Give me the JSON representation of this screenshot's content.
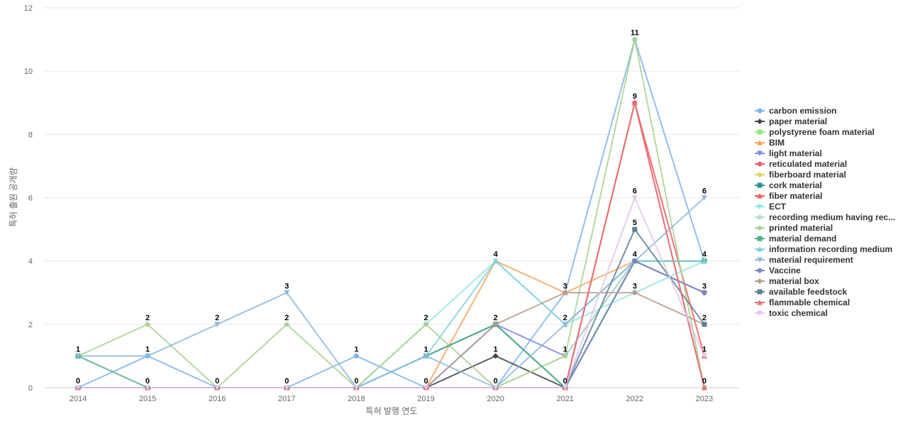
{
  "chart_data": {
    "type": "line",
    "xlabel": "특허 발행 연도",
    "ylabel": "특허 출원 공개량",
    "ylim": [
      0,
      12
    ],
    "yticks": [
      0,
      2,
      4,
      6,
      8,
      10,
      12
    ],
    "grid": true,
    "legend_position": "right",
    "categories": [
      "2014",
      "2015",
      "2016",
      "2017",
      "2018",
      "2019",
      "2020",
      "2021",
      "2022",
      "2023"
    ],
    "series": [
      {
        "name": "carbon emission",
        "color": "#7cb5ec",
        "marker": "circle",
        "values": [
          0,
          1,
          0,
          0,
          1,
          0,
          0,
          3,
          11,
          4
        ]
      },
      {
        "name": "paper material",
        "color": "#434348",
        "marker": "diamond",
        "values": [
          0,
          0,
          0,
          0,
          0,
          0,
          1,
          0,
          4,
          3
        ]
      },
      {
        "name": "polystyrene foam material",
        "color": "#90ed7d",
        "marker": "square",
        "values": [
          0,
          0,
          0,
          0,
          0,
          0,
          0,
          0,
          4,
          4
        ]
      },
      {
        "name": "BIM",
        "color": "#f7a35c",
        "marker": "triangle",
        "values": [
          0,
          0,
          0,
          0,
          0,
          0,
          4,
          3,
          4,
          4
        ]
      },
      {
        "name": "light material",
        "color": "#8085e9",
        "marker": "triangle-down",
        "values": [
          0,
          0,
          0,
          0,
          0,
          0,
          2,
          1,
          4,
          3
        ]
      },
      {
        "name": "reticulated material",
        "color": "#f15c80",
        "marker": "circle",
        "values": [
          0,
          0,
          0,
          0,
          0,
          0,
          0,
          0,
          9,
          0
        ]
      },
      {
        "name": "fiberboard material",
        "color": "#e4d354",
        "marker": "diamond",
        "values": [
          0,
          0,
          0,
          0,
          0,
          0,
          0,
          0,
          4,
          4
        ]
      },
      {
        "name": "cork material",
        "color": "#2b908f",
        "marker": "square",
        "values": [
          0,
          0,
          0,
          0,
          0,
          1,
          2,
          0,
          4,
          4
        ]
      },
      {
        "name": "fiber material",
        "color": "#f45b5b",
        "marker": "triangle",
        "values": [
          0,
          0,
          0,
          0,
          0,
          0,
          0,
          0,
          9,
          1
        ]
      },
      {
        "name": "ECT",
        "color": "#91e8e1",
        "marker": "triangle-down",
        "values": [
          0,
          0,
          0,
          0,
          0,
          2,
          4,
          2,
          3,
          4
        ]
      },
      {
        "name": "recording medium having rec...",
        "color": "#b5dfc4",
        "marker": "circle",
        "values": [
          0,
          0,
          0,
          0,
          0,
          0,
          0,
          1,
          4,
          4
        ]
      },
      {
        "name": "printed material",
        "color": "#a9d18e",
        "marker": "diamond",
        "values": [
          1,
          2,
          0,
          2,
          0,
          2,
          0,
          1,
          11,
          0
        ]
      },
      {
        "name": "material demand",
        "color": "#4cae8f",
        "marker": "square",
        "values": [
          1,
          0,
          0,
          0,
          0,
          1,
          2,
          0,
          4,
          4
        ]
      },
      {
        "name": "information recording medium",
        "color": "#7fd0e0",
        "marker": "triangle",
        "values": [
          0,
          0,
          0,
          0,
          0,
          1,
          4,
          2,
          4,
          4
        ]
      },
      {
        "name": "material requirement",
        "color": "#8eb8dc",
        "marker": "triangle-down",
        "values": [
          1,
          1,
          2,
          3,
          0,
          1,
          0,
          2,
          4,
          6
        ]
      },
      {
        "name": "Vaccine",
        "color": "#7f86c8",
        "marker": "circle",
        "values": [
          0,
          0,
          0,
          0,
          0,
          0,
          0,
          0,
          4,
          3
        ]
      },
      {
        "name": "material box",
        "color": "#b89a8a",
        "marker": "diamond",
        "values": [
          0,
          0,
          0,
          0,
          0,
          0,
          2,
          3,
          3,
          2
        ]
      },
      {
        "name": "available feedstock",
        "color": "#5d7f97",
        "marker": "square",
        "values": [
          0,
          0,
          0,
          0,
          0,
          0,
          0,
          0,
          5,
          2
        ]
      },
      {
        "name": "flammable chemical",
        "color": "#e57373",
        "marker": "triangle",
        "values": [
          0,
          0,
          0,
          0,
          0,
          0,
          0,
          0,
          9,
          0
        ]
      },
      {
        "name": "toxic chemical",
        "color": "#e2c6ea",
        "marker": "triangle-down",
        "values": [
          0,
          0,
          0,
          0,
          0,
          0,
          0,
          0,
          6,
          1
        ]
      }
    ],
    "data_labels": [
      {
        "category": "2014",
        "values": [
          1,
          0
        ]
      },
      {
        "category": "2015",
        "values": [
          2,
          1,
          0
        ]
      },
      {
        "category": "2016",
        "values": [
          2,
          0
        ]
      },
      {
        "category": "2017",
        "values": [
          3,
          2,
          0
        ]
      },
      {
        "category": "2018",
        "values": [
          1,
          0
        ]
      },
      {
        "category": "2019",
        "values": [
          2,
          1,
          0
        ]
      },
      {
        "category": "2020",
        "values": [
          4,
          2,
          1,
          0
        ]
      },
      {
        "category": "2021",
        "values": [
          3,
          2,
          1,
          0
        ]
      },
      {
        "category": "2022",
        "values": [
          11,
          9,
          6,
          5,
          4,
          3
        ]
      },
      {
        "category": "2023",
        "values": [
          6,
          4,
          3,
          2,
          1,
          0
        ]
      }
    ]
  }
}
